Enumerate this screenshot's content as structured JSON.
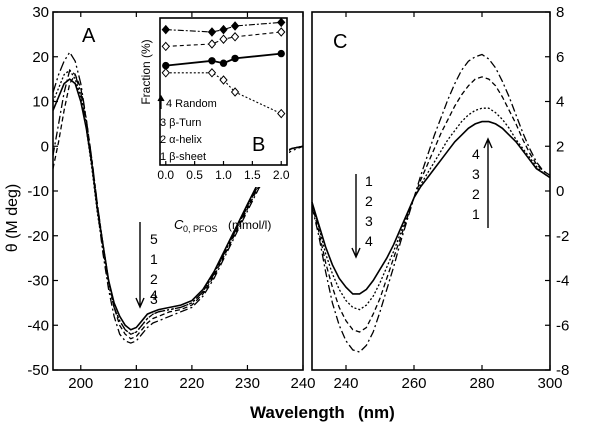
{
  "chart_data": [
    {
      "panel": "A",
      "type": "line",
      "ylabel": "θ (M deg)",
      "xlim": [
        195,
        240
      ],
      "ylim": [
        -50,
        30
      ],
      "xticks": [
        200,
        210,
        220,
        230,
        240
      ],
      "yticks": [
        -50,
        -40,
        -30,
        -20,
        -10,
        0,
        10,
        20,
        30
      ],
      "series": [
        {
          "name": "1",
          "dash": "solid",
          "x": [
            195,
            196,
            197,
            198,
            199,
            200,
            201,
            202,
            203,
            204,
            205,
            206,
            207,
            208,
            209,
            210,
            211,
            212,
            213,
            214,
            216,
            218,
            220,
            222,
            224,
            226,
            228,
            230,
            232,
            234,
            236,
            238,
            240
          ],
          "y": [
            8,
            11,
            14,
            15,
            14,
            10,
            4,
            -4,
            -14,
            -22,
            -30,
            -35,
            -38,
            -40,
            -41,
            -40.5,
            -39,
            -37.5,
            -37,
            -36.5,
            -36,
            -35.5,
            -34.5,
            -32,
            -28,
            -23,
            -18,
            -13,
            -8,
            -4,
            -1.5,
            -0.5,
            0
          ]
        },
        {
          "name": "2",
          "dash": "2,2",
          "x": [
            195,
            196,
            197,
            198,
            199,
            200,
            201,
            202,
            203,
            204,
            205,
            206,
            207,
            208,
            209,
            210,
            211,
            212,
            213,
            214,
            216,
            218,
            220,
            222,
            224,
            226,
            228,
            230,
            232,
            234,
            236,
            238,
            240
          ],
          "y": [
            10,
            13,
            16,
            17,
            15,
            11,
            4,
            -5,
            -15,
            -23,
            -31,
            -36,
            -39,
            -41,
            -42,
            -41.5,
            -40,
            -38.5,
            -37.5,
            -37,
            -36.5,
            -36,
            -35,
            -32.5,
            -28.5,
            -23.5,
            -18.5,
            -13.5,
            -8.5,
            -4.5,
            -2,
            -0.5,
            0
          ]
        },
        {
          "name": "3",
          "dash": "5,3",
          "x": [
            195,
            196,
            197,
            198,
            199,
            200,
            201,
            202,
            203,
            204,
            205,
            206,
            207,
            208,
            209,
            210,
            211,
            212,
            213,
            214,
            216,
            218,
            220,
            222,
            224,
            226,
            228,
            230,
            232,
            234,
            236,
            238,
            240
          ],
          "y": [
            -5,
            1,
            8,
            14,
            16,
            13,
            6,
            -3,
            -13,
            -22,
            -30,
            -36,
            -40,
            -42,
            -43,
            -42.5,
            -41,
            -39.5,
            -38.5,
            -38,
            -37,
            -36.5,
            -35.5,
            -33,
            -29,
            -24,
            -19,
            -14,
            -9,
            -5,
            -2,
            -0.5,
            0
          ]
        },
        {
          "name": "4",
          "dash": "8,3,2,3",
          "x": [
            195,
            196,
            197,
            198,
            199,
            200,
            201,
            202,
            203,
            204,
            205,
            206,
            207,
            208,
            209,
            210,
            211,
            212,
            213,
            214,
            216,
            218,
            220,
            222,
            224,
            226,
            228,
            230,
            232,
            234,
            236,
            238,
            240
          ],
          "y": [
            -2,
            5,
            12,
            17,
            16,
            12,
            5,
            -4,
            -14,
            -24,
            -32,
            -38,
            -42,
            -43.5,
            -44,
            -43.5,
            -42,
            -40.5,
            -39.5,
            -39,
            -38,
            -37,
            -36,
            -33.5,
            -29.5,
            -24.5,
            -19.5,
            -14.5,
            -9.5,
            -5.5,
            -2.5,
            -1,
            0
          ]
        },
        {
          "name": "5",
          "dash": "10,3,2,3,2,3",
          "x": [
            195,
            196,
            197,
            198,
            199,
            200,
            201,
            202,
            203,
            204,
            205,
            206,
            207,
            208,
            209,
            210,
            211,
            212,
            213,
            214,
            216,
            218,
            220,
            222,
            224,
            226,
            228,
            230,
            232,
            234,
            236,
            238,
            240
          ],
          "y": [
            12,
            16,
            19,
            21,
            19,
            14,
            6,
            -3,
            -13,
            -22,
            -30,
            -36,
            -39,
            -41,
            -42,
            -41.5,
            -40,
            -38.5,
            -37.5,
            -37,
            -36.5,
            -36,
            -35,
            -32.5,
            -28.5,
            -23.5,
            -18.5,
            -13.5,
            -8.5,
            -4.5,
            -2,
            -0.5,
            0
          ]
        }
      ],
      "panel_label": "A",
      "arrow_labels": [
        "5",
        "1",
        "2",
        "3",
        "4"
      ]
    },
    {
      "panel": "B",
      "type": "line",
      "xlabel_main": "C",
      "xlabel_sub": "0, PFOS",
      "xlabel_units": "(mmol/l)",
      "ylabel": "Fraction (%)",
      "xlim": [
        -0.1,
        2.1
      ],
      "xticks": [
        "0.0",
        "0.5",
        "1.0",
        "1.5",
        "2.0"
      ],
      "xtick_values": [
        0,
        0.5,
        1.0,
        1.5,
        2.0
      ],
      "ylim": [
        0,
        1
      ],
      "panel_label": "B",
      "legend": [
        "4 Random",
        "3 β-Turn",
        "2 α-helix",
        "1 β-sheet"
      ],
      "series": [
        {
          "name": "4 Random",
          "marker": "filled-diamond",
          "x": [
            0,
            0.8,
            1.0,
            1.2,
            2.0
          ],
          "y": [
            0.92,
            0.9,
            0.92,
            0.95,
            0.98
          ]
        },
        {
          "name": "3 β-Turn",
          "marker": "open-diamond",
          "x": [
            0,
            0.8,
            1.0,
            1.2,
            2.0
          ],
          "y": [
            0.78,
            0.8,
            0.84,
            0.86,
            0.9
          ]
        },
        {
          "name": "2 α-helix",
          "marker": "filled-circle",
          "x": [
            0,
            0.8,
            1.0,
            1.2,
            2.0
          ],
          "y": [
            0.62,
            0.66,
            0.64,
            0.68,
            0.72
          ]
        },
        {
          "name": "1 β-sheet",
          "marker": "open-diamond",
          "x": [
            0,
            0.8,
            1.0,
            1.2,
            2.0
          ],
          "y": [
            0.56,
            0.56,
            0.5,
            0.4,
            0.22
          ]
        }
      ]
    },
    {
      "panel": "C",
      "type": "line",
      "xlim": [
        230,
        300
      ],
      "ylim": [
        -8,
        8
      ],
      "xticks": [
        240,
        260,
        280,
        300
      ],
      "yticks": [
        -8,
        -6,
        -4,
        -2,
        0,
        2,
        4,
        6,
        8
      ],
      "series": [
        {
          "name": "1",
          "dash": "solid",
          "x": [
            230,
            232,
            234,
            236,
            238,
            240,
            242,
            244,
            246,
            248,
            250,
            252,
            254,
            256,
            258,
            260,
            262,
            264,
            266,
            268,
            270,
            272,
            274,
            276,
            278,
            280,
            282,
            284,
            286,
            288,
            290,
            292,
            294,
            296,
            298,
            300
          ],
          "y": [
            -0.5,
            -1.5,
            -2.5,
            -3.3,
            -3.9,
            -4.3,
            -4.6,
            -4.6,
            -4.4,
            -4.0,
            -3.5,
            -3.0,
            -2.4,
            -1.7,
            -1.0,
            -0.3,
            0.2,
            0.6,
            1.0,
            1.4,
            1.8,
            2.2,
            2.5,
            2.8,
            3.0,
            3.1,
            3.1,
            3.0,
            2.8,
            2.5,
            2.2,
            1.8,
            1.4,
            1.0,
            0.8,
            0.6
          ]
        },
        {
          "name": "2",
          "dash": "2,2",
          "x": [
            230,
            232,
            234,
            236,
            238,
            240,
            242,
            244,
            246,
            248,
            250,
            252,
            254,
            256,
            258,
            260,
            262,
            264,
            266,
            268,
            270,
            272,
            274,
            276,
            278,
            280,
            282,
            284,
            286,
            288,
            290,
            292,
            294,
            296,
            298,
            300
          ],
          "y": [
            -0.5,
            -1.6,
            -2.8,
            -3.7,
            -4.4,
            -4.9,
            -5.2,
            -5.3,
            -5.1,
            -4.7,
            -4.1,
            -3.4,
            -2.7,
            -1.9,
            -1.1,
            -0.3,
            0.3,
            0.8,
            1.3,
            1.8,
            2.3,
            2.7,
            3.1,
            3.4,
            3.6,
            3.7,
            3.7,
            3.5,
            3.2,
            2.8,
            2.3,
            1.9,
            1.5,
            1.1,
            0.8,
            0.6
          ]
        },
        {
          "name": "3",
          "dash": "5,3",
          "x": [
            230,
            232,
            234,
            236,
            238,
            240,
            242,
            244,
            246,
            248,
            250,
            252,
            254,
            256,
            258,
            260,
            262,
            264,
            266,
            268,
            270,
            272,
            274,
            276,
            278,
            280,
            282,
            284,
            286,
            288,
            290,
            292,
            294,
            296,
            298,
            300
          ],
          "y": [
            -0.6,
            -1.8,
            -3.2,
            -4.3,
            -5.2,
            -5.8,
            -6.2,
            -6.3,
            -6.1,
            -5.5,
            -4.8,
            -3.9,
            -3.0,
            -2.1,
            -1.2,
            -0.3,
            0.5,
            1.2,
            1.9,
            2.6,
            3.2,
            3.8,
            4.3,
            4.7,
            5.0,
            5.1,
            5.0,
            4.7,
            4.2,
            3.6,
            3.0,
            2.3,
            1.7,
            1.2,
            0.9,
            0.7
          ]
        },
        {
          "name": "4",
          "dash": "8,3,2,3",
          "x": [
            230,
            232,
            234,
            236,
            238,
            240,
            242,
            244,
            246,
            248,
            250,
            252,
            254,
            256,
            258,
            260,
            262,
            264,
            266,
            268,
            270,
            272,
            274,
            276,
            278,
            280,
            282,
            284,
            286,
            288,
            290,
            292,
            294,
            296,
            298,
            300
          ],
          "y": [
            -0.7,
            -2.0,
            -3.6,
            -5.0,
            -6.0,
            -6.7,
            -7.1,
            -7.2,
            -6.9,
            -6.3,
            -5.4,
            -4.4,
            -3.4,
            -2.3,
            -1.3,
            -0.3,
            0.7,
            1.6,
            2.5,
            3.3,
            4.1,
            4.8,
            5.4,
            5.8,
            6.0,
            6.1,
            5.9,
            5.5,
            4.9,
            4.2,
            3.4,
            2.6,
            1.9,
            1.3,
            0.9,
            0.7
          ]
        }
      ],
      "panel_label": "C",
      "arrow_down_labels": [
        "1",
        "2",
        "3",
        "4"
      ],
      "arrow_up_labels": [
        "4",
        "3",
        "2",
        "1"
      ]
    }
  ],
  "xlabel_main": "Wavelength",
  "xlabel_units": "(nm)"
}
